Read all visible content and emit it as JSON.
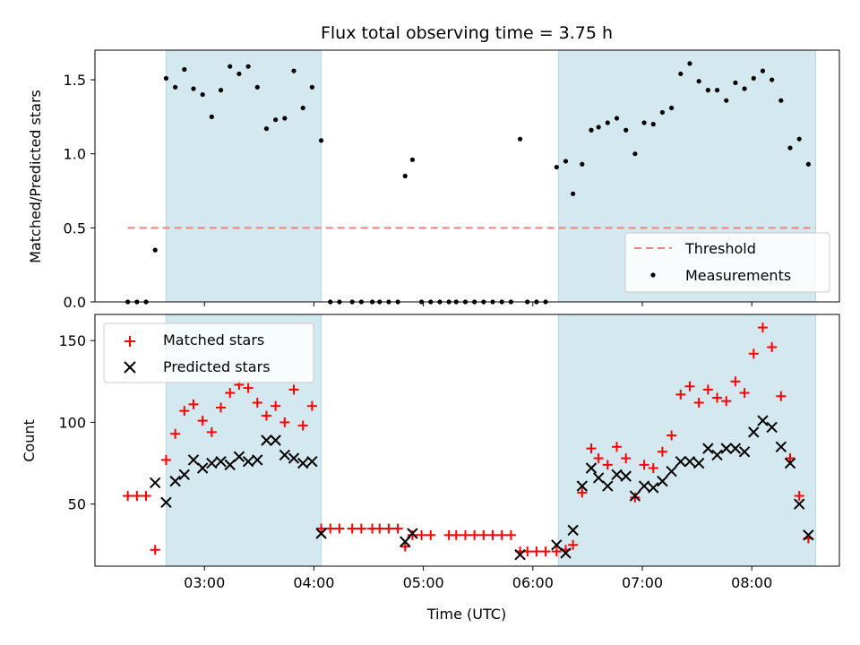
{
  "chart_data": {
    "title": "Flux total observing time = 3.75 h",
    "xlabel": "Time (UTC)",
    "x_ticks": [
      "03:00",
      "04:00",
      "05:00",
      "06:00",
      "07:00",
      "08:00"
    ],
    "x_range_hours": [
      2.0,
      8.8
    ],
    "shaded_intervals": [
      [
        "02:39",
        "04:04"
      ],
      [
        "06:14",
        "08:35"
      ]
    ],
    "shade_color": "#d3e9ef",
    "panels": [
      {
        "type": "scatter",
        "ylabel": "Matched/Predicted stars",
        "ylim": [
          0,
          1.7
        ],
        "yticks": [
          "0.0",
          "0.5",
          "1.0",
          "1.5"
        ],
        "threshold": {
          "name": "Threshold",
          "value": 0.5,
          "color": "#f08080"
        },
        "legend": [
          "Threshold",
          "Measurements"
        ],
        "legend_position": "lower-right",
        "series": [
          {
            "name": "Measurements",
            "color": "#000000",
            "points": [
              [
                "02:18",
                0.0
              ],
              [
                "02:23",
                0.0
              ],
              [
                "02:28",
                0.0
              ],
              [
                "02:33",
                0.35
              ],
              [
                "02:39",
                1.51
              ],
              [
                "02:44",
                1.45
              ],
              [
                "02:49",
                1.57
              ],
              [
                "02:54",
                1.44
              ],
              [
                "02:59",
                1.4
              ],
              [
                "03:04",
                1.25
              ],
              [
                "03:09",
                1.43
              ],
              [
                "03:14",
                1.59
              ],
              [
                "03:19",
                1.54
              ],
              [
                "03:24",
                1.59
              ],
              [
                "03:29",
                1.45
              ],
              [
                "03:34",
                1.17
              ],
              [
                "03:39",
                1.23
              ],
              [
                "03:44",
                1.24
              ],
              [
                "03:49",
                1.56
              ],
              [
                "03:54",
                1.31
              ],
              [
                "03:59",
                1.45
              ],
              [
                "04:04",
                1.09
              ],
              [
                "04:09",
                0.0
              ],
              [
                "04:14",
                0.0
              ],
              [
                "04:21",
                0.0
              ],
              [
                "04:26",
                0.0
              ],
              [
                "04:32",
                0.0
              ],
              [
                "04:36",
                0.0
              ],
              [
                "04:41",
                0.0
              ],
              [
                "04:46",
                0.0
              ],
              [
                "04:50",
                0.85
              ],
              [
                "04:54",
                0.96
              ],
              [
                "04:59",
                0.0
              ],
              [
                "05:04",
                0.0
              ],
              [
                "05:09",
                0.0
              ],
              [
                "05:14",
                0.0
              ],
              [
                "05:18",
                0.0
              ],
              [
                "05:23",
                0.0
              ],
              [
                "05:28",
                0.0
              ],
              [
                "05:33",
                0.0
              ],
              [
                "05:38",
                0.0
              ],
              [
                "05:43",
                0.0
              ],
              [
                "05:48",
                0.0
              ],
              [
                "05:53",
                1.1
              ],
              [
                "05:57",
                0.0
              ],
              [
                "06:02",
                0.0
              ],
              [
                "06:07",
                0.0
              ],
              [
                "06:13",
                0.91
              ],
              [
                "06:18",
                0.95
              ],
              [
                "06:22",
                0.73
              ],
              [
                "06:27",
                0.93
              ],
              [
                "06:32",
                1.16
              ],
              [
                "06:36",
                1.18
              ],
              [
                "06:41",
                1.21
              ],
              [
                "06:46",
                1.24
              ],
              [
                "06:51",
                1.16
              ],
              [
                "06:56",
                1.0
              ],
              [
                "07:01",
                1.21
              ],
              [
                "07:06",
                1.2
              ],
              [
                "07:11",
                1.28
              ],
              [
                "07:16",
                1.31
              ],
              [
                "07:21",
                1.54
              ],
              [
                "07:26",
                1.61
              ],
              [
                "07:31",
                1.49
              ],
              [
                "07:36",
                1.43
              ],
              [
                "07:41",
                1.43
              ],
              [
                "07:46",
                1.36
              ],
              [
                "07:51",
                1.48
              ],
              [
                "07:56",
                1.44
              ],
              [
                "08:01",
                1.51
              ],
              [
                "08:06",
                1.56
              ],
              [
                "08:11",
                1.5
              ],
              [
                "08:16",
                1.36
              ],
              [
                "08:21",
                1.04
              ],
              [
                "08:26",
                1.1
              ],
              [
                "08:31",
                0.93
              ]
            ]
          }
        ]
      },
      {
        "type": "scatter",
        "ylabel": "Count",
        "ylim": [
          12,
          166
        ],
        "yticks": [
          "50",
          "100",
          "150"
        ],
        "legend": [
          "Matched stars",
          "Predicted stars"
        ],
        "legend_position": "top-left",
        "series": [
          {
            "name": "Matched stars",
            "marker": "+",
            "color": "#ff0000",
            "points": [
              [
                "02:18",
                55
              ],
              [
                "02:23",
                55
              ],
              [
                "02:28",
                55
              ],
              [
                "02:33",
                22
              ],
              [
                "02:39",
                77
              ],
              [
                "02:44",
                93
              ],
              [
                "02:49",
                107
              ],
              [
                "02:54",
                111
              ],
              [
                "02:59",
                101
              ],
              [
                "03:04",
                94
              ],
              [
                "03:09",
                109
              ],
              [
                "03:14",
                118
              ],
              [
                "03:19",
                123
              ],
              [
                "03:24",
                121
              ],
              [
                "03:29",
                112
              ],
              [
                "03:34",
                104
              ],
              [
                "03:39",
                110
              ],
              [
                "03:44",
                100
              ],
              [
                "03:49",
                120
              ],
              [
                "03:54",
                98
              ],
              [
                "03:59",
                110
              ],
              [
                "04:04",
                35
              ],
              [
                "04:09",
                35
              ],
              [
                "04:14",
                35
              ],
              [
                "04:21",
                35
              ],
              [
                "04:26",
                35
              ],
              [
                "04:32",
                35
              ],
              [
                "04:36",
                35
              ],
              [
                "04:41",
                35
              ],
              [
                "04:46",
                35
              ],
              [
                "04:50",
                24
              ],
              [
                "04:54",
                31
              ],
              [
                "04:59",
                31
              ],
              [
                "05:04",
                31
              ],
              [
                "05:14",
                31
              ],
              [
                "05:18",
                31
              ],
              [
                "05:23",
                31
              ],
              [
                "05:28",
                31
              ],
              [
                "05:33",
                31
              ],
              [
                "05:38",
                31
              ],
              [
                "05:43",
                31
              ],
              [
                "05:48",
                31
              ],
              [
                "05:53",
                21
              ],
              [
                "05:57",
                21
              ],
              [
                "06:02",
                21
              ],
              [
                "06:07",
                21
              ],
              [
                "06:13",
                21
              ],
              [
                "06:18",
                22
              ],
              [
                "06:22",
                25
              ],
              [
                "06:27",
                57
              ],
              [
                "06:32",
                84
              ],
              [
                "06:36",
                78
              ],
              [
                "06:41",
                74
              ],
              [
                "06:46",
                85
              ],
              [
                "06:51",
                78
              ],
              [
                "06:56",
                54
              ],
              [
                "07:01",
                74
              ],
              [
                "07:06",
                72
              ],
              [
                "07:11",
                82
              ],
              [
                "07:16",
                92
              ],
              [
                "07:21",
                117
              ],
              [
                "07:26",
                122
              ],
              [
                "07:31",
                112
              ],
              [
                "07:36",
                120
              ],
              [
                "07:41",
                115
              ],
              [
                "07:46",
                113
              ],
              [
                "07:51",
                125
              ],
              [
                "07:56",
                118
              ],
              [
                "08:01",
                142
              ],
              [
                "08:06",
                158
              ],
              [
                "08:11",
                146
              ],
              [
                "08:16",
                116
              ],
              [
                "08:21",
                78
              ],
              [
                "08:26",
                55
              ],
              [
                "08:31",
                29
              ]
            ]
          },
          {
            "name": "Predicted stars",
            "marker": "x",
            "color": "#000000",
            "points": [
              [
                "02:33",
                63
              ],
              [
                "02:39",
                51
              ],
              [
                "02:44",
                64
              ],
              [
                "02:49",
                68
              ],
              [
                "02:54",
                77
              ],
              [
                "02:59",
                72
              ],
              [
                "03:04",
                75
              ],
              [
                "03:09",
                76
              ],
              [
                "03:14",
                74
              ],
              [
                "03:19",
                79
              ],
              [
                "03:24",
                76
              ],
              [
                "03:29",
                77
              ],
              [
                "03:34",
                89
              ],
              [
                "03:39",
                89
              ],
              [
                "03:44",
                80
              ],
              [
                "03:49",
                78
              ],
              [
                "03:54",
                75
              ],
              [
                "03:59",
                76
              ],
              [
                "04:04",
                32
              ],
              [
                "04:50",
                27
              ],
              [
                "04:54",
                32
              ],
              [
                "05:53",
                19
              ],
              [
                "06:13",
                25
              ],
              [
                "06:18",
                20
              ],
              [
                "06:22",
                34
              ],
              [
                "06:27",
                61
              ],
              [
                "06:32",
                72
              ],
              [
                "06:36",
                66
              ],
              [
                "06:41",
                61
              ],
              [
                "06:46",
                68
              ],
              [
                "06:51",
                67
              ],
              [
                "06:56",
                55
              ],
              [
                "07:01",
                61
              ],
              [
                "07:06",
                60
              ],
              [
                "07:11",
                64
              ],
              [
                "07:16",
                70
              ],
              [
                "07:21",
                76
              ],
              [
                "07:26",
                76
              ],
              [
                "07:31",
                75
              ],
              [
                "07:36",
                84
              ],
              [
                "07:41",
                80
              ],
              [
                "07:46",
                84
              ],
              [
                "07:51",
                84
              ],
              [
                "07:56",
                82
              ],
              [
                "08:01",
                94
              ],
              [
                "08:06",
                101
              ],
              [
                "08:11",
                97
              ],
              [
                "08:16",
                85
              ],
              [
                "08:21",
                75
              ],
              [
                "08:26",
                50
              ],
              [
                "08:31",
                31
              ]
            ]
          }
        ]
      }
    ]
  }
}
